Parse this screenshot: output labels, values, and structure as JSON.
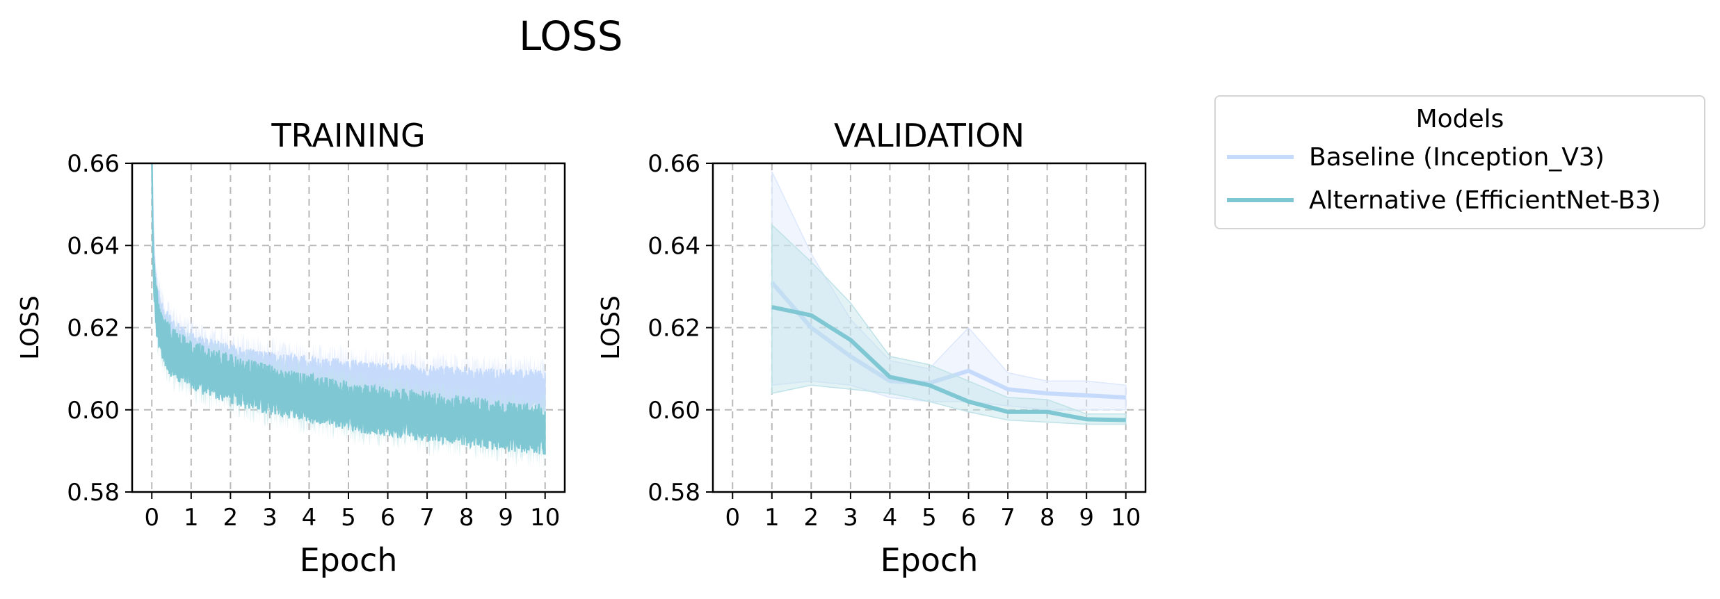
{
  "figure_title": "LOSS",
  "colors": {
    "baseline": "#c6dbfb",
    "alternative": "#7fc8d3",
    "baseline_band": "#dde8fc",
    "alternative_band": "#bfe3e8",
    "grid": "#b8b8b8"
  },
  "legend": {
    "title": "Models",
    "items": [
      {
        "label": "Baseline (Inception_V3)",
        "key": "baseline"
      },
      {
        "label": "Alternative (EfficientNet-B3)",
        "key": "alternative"
      }
    ]
  },
  "chart_data": [
    {
      "type": "line",
      "title": "TRAINING",
      "xlabel": "Epoch",
      "ylabel": "LOSS",
      "xlim": [
        -0.5,
        10.5
      ],
      "ylim": [
        0.58,
        0.66
      ],
      "xticks": [
        "0",
        "1",
        "2",
        "3",
        "4",
        "5",
        "6",
        "7",
        "8",
        "9",
        "10"
      ],
      "yticks": [
        "0.58",
        "0.60",
        "0.62",
        "0.64",
        "0.66"
      ],
      "grid": true,
      "series": [
        {
          "name": "Baseline (Inception_V3)",
          "x": [
            0,
            0.02,
            0.05,
            0.1,
            0.2,
            0.3,
            0.5,
            0.75,
            1,
            1.5,
            2,
            2.5,
            3,
            3.5,
            4,
            4.5,
            5,
            5.5,
            6,
            6.5,
            7,
            7.5,
            8,
            8.5,
            9,
            9.5,
            10
          ],
          "mean": [
            0.664,
            0.648,
            0.636,
            0.628,
            0.623,
            0.62,
            0.617,
            0.615,
            0.6135,
            0.6118,
            0.6105,
            0.6095,
            0.6088,
            0.6082,
            0.6076,
            0.6072,
            0.6068,
            0.6064,
            0.606,
            0.6057,
            0.6054,
            0.6052,
            0.605,
            0.6048,
            0.6046,
            0.6044,
            0.6043
          ],
          "lower": [
            0.66,
            0.642,
            0.63,
            0.622,
            0.617,
            0.614,
            0.611,
            0.609,
            0.6075,
            0.6058,
            0.6045,
            0.6035,
            0.6028,
            0.6022,
            0.6016,
            0.6012,
            0.6008,
            0.6004,
            0.6,
            0.5997,
            0.5994,
            0.5992,
            0.599,
            0.5988,
            0.5986,
            0.5984,
            0.5983
          ],
          "upper": [
            0.668,
            0.654,
            0.642,
            0.634,
            0.629,
            0.626,
            0.623,
            0.621,
            0.6195,
            0.6178,
            0.6165,
            0.6155,
            0.6148,
            0.6142,
            0.6136,
            0.6132,
            0.6128,
            0.6124,
            0.612,
            0.6117,
            0.6114,
            0.6112,
            0.611,
            0.6108,
            0.6106,
            0.6104,
            0.6103
          ],
          "noise": 0.0025
        },
        {
          "name": "Alternative (EfficientNet-B3)",
          "x": [
            0,
            0.02,
            0.05,
            0.1,
            0.2,
            0.3,
            0.5,
            0.75,
            1,
            1.5,
            2,
            2.5,
            3,
            3.5,
            4,
            4.5,
            5,
            5.5,
            6,
            6.5,
            7,
            7.5,
            8,
            8.5,
            9,
            9.5,
            10
          ],
          "mean": [
            0.662,
            0.645,
            0.633,
            0.625,
            0.62,
            0.617,
            0.614,
            0.6125,
            0.611,
            0.609,
            0.6075,
            0.606,
            0.605,
            0.604,
            0.6028,
            0.6018,
            0.601,
            0.6002,
            0.5996,
            0.599,
            0.5984,
            0.5978,
            0.5972,
            0.5966,
            0.596,
            0.5956,
            0.5952
          ],
          "lower": [
            0.658,
            0.639,
            0.627,
            0.619,
            0.614,
            0.611,
            0.608,
            0.6065,
            0.605,
            0.603,
            0.6015,
            0.6,
            0.599,
            0.598,
            0.5968,
            0.5958,
            0.595,
            0.5942,
            0.5936,
            0.593,
            0.5924,
            0.5918,
            0.5912,
            0.5906,
            0.59,
            0.5896,
            0.5892
          ],
          "upper": [
            0.666,
            0.651,
            0.639,
            0.631,
            0.626,
            0.623,
            0.62,
            0.6185,
            0.617,
            0.615,
            0.6135,
            0.612,
            0.611,
            0.61,
            0.6088,
            0.6078,
            0.607,
            0.6062,
            0.6056,
            0.605,
            0.6044,
            0.6038,
            0.6032,
            0.6026,
            0.602,
            0.6016,
            0.6012
          ],
          "noise": 0.0028
        }
      ]
    },
    {
      "type": "line",
      "title": "VALIDATION",
      "xlabel": "Epoch",
      "ylabel": "LOSS",
      "xlim": [
        -0.5,
        10.5
      ],
      "ylim": [
        0.58,
        0.66
      ],
      "xticks": [
        "0",
        "1",
        "2",
        "3",
        "4",
        "5",
        "6",
        "7",
        "8",
        "9",
        "10"
      ],
      "yticks": [
        "0.58",
        "0.60",
        "0.62",
        "0.64",
        "0.66"
      ],
      "grid": true,
      "series": [
        {
          "name": "Baseline (Inception_V3)",
          "x": [
            1,
            2,
            3,
            4,
            5,
            6,
            7,
            8,
            9,
            10
          ],
          "mean": [
            0.631,
            0.62,
            0.613,
            0.607,
            0.6065,
            0.6095,
            0.605,
            0.604,
            0.6035,
            0.603
          ],
          "lower": [
            0.606,
            0.607,
            0.606,
            0.603,
            0.602,
            0.602,
            0.601,
            0.6,
            0.6,
            0.6
          ],
          "upper": [
            0.658,
            0.638,
            0.622,
            0.612,
            0.61,
            0.62,
            0.609,
            0.607,
            0.607,
            0.606
          ]
        },
        {
          "name": "Alternative (EfficientNet-B3)",
          "x": [
            1,
            2,
            3,
            4,
            5,
            6,
            7,
            8,
            9,
            10
          ],
          "mean": [
            0.625,
            0.623,
            0.617,
            0.608,
            0.606,
            0.602,
            0.5995,
            0.5995,
            0.5977,
            0.5975
          ],
          "lower": [
            0.604,
            0.606,
            0.605,
            0.604,
            0.602,
            0.5995,
            0.5975,
            0.597,
            0.5965,
            0.5965
          ],
          "upper": [
            0.645,
            0.636,
            0.626,
            0.613,
            0.611,
            0.607,
            0.603,
            0.6025,
            0.599,
            0.599
          ]
        }
      ]
    }
  ]
}
